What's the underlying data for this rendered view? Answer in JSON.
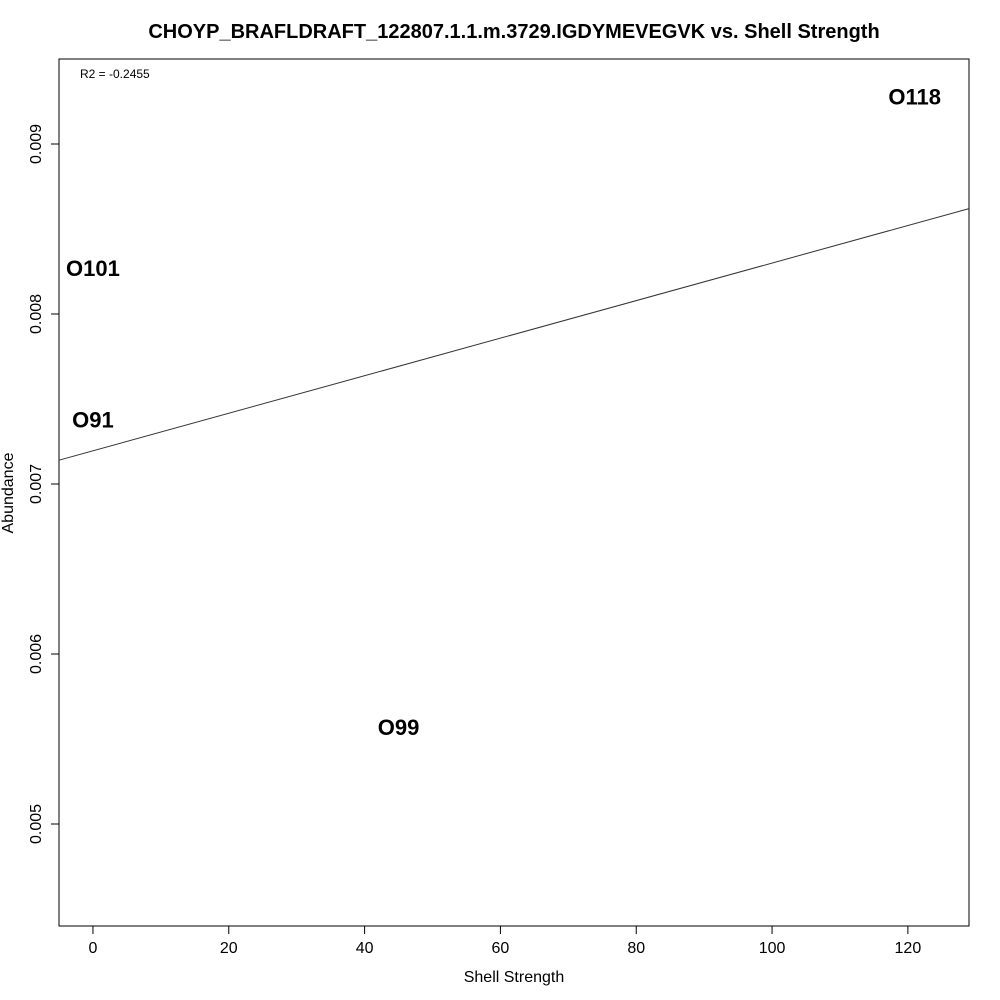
{
  "chart_data": {
    "type": "scatter",
    "title": "CHOYP_BRAFLDRAFT_122807.1.1.m.3729.IGDYMEVEGVK vs. Shell Strength",
    "xlabel": "Shell Strength",
    "ylabel": "Abundance",
    "annotation": "R2 = -0.2455",
    "xlim": [
      -5,
      129
    ],
    "ylim": [
      0.0044,
      0.0095
    ],
    "x_ticks": [
      0,
      20,
      40,
      60,
      80,
      100,
      120
    ],
    "x_tick_labels": [
      "0",
      "20",
      "40",
      "60",
      "80",
      "100",
      "120"
    ],
    "y_ticks": [
      0.005,
      0.006,
      0.007,
      0.008,
      0.009
    ],
    "y_tick_labels": [
      "0.005",
      "0.006",
      "0.007",
      "0.008",
      "0.009"
    ],
    "points": [
      {
        "label": "O118",
        "x": 121,
        "y": 0.00928
      },
      {
        "label": "O101",
        "x": 0,
        "y": 0.00827
      },
      {
        "label": "O91",
        "x": 0,
        "y": 0.00738
      },
      {
        "label": "O99",
        "x": 45,
        "y": 0.00557
      }
    ],
    "fit_line": {
      "x": [
        -5,
        129
      ],
      "y": [
        0.00714,
        0.00862
      ]
    },
    "grid": false,
    "legend": "none"
  }
}
